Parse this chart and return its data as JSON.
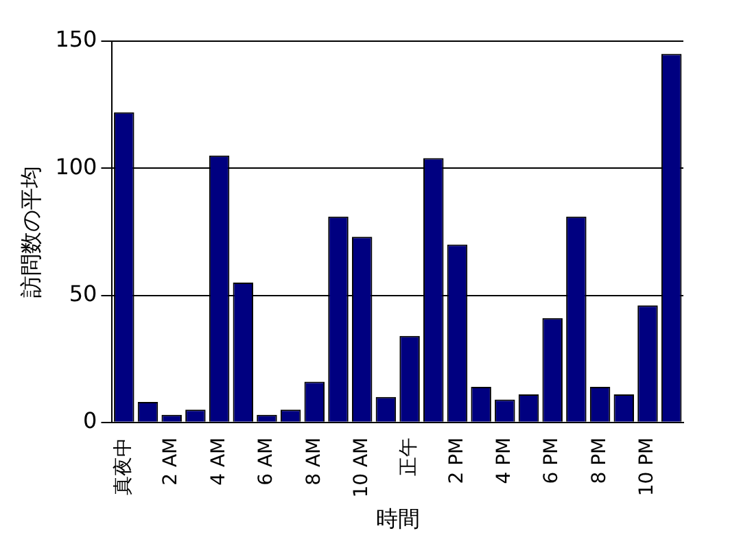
{
  "chart_data": {
    "type": "bar",
    "xlabel": "時間",
    "ylabel": "訪問数の平均",
    "categories": [
      "真夜中",
      null,
      "2 AM",
      null,
      "4 AM",
      null,
      "6 AM",
      null,
      "8 AM",
      null,
      "10 AM",
      null,
      "正午",
      null,
      "2 PM",
      null,
      "4 PM",
      null,
      "6 PM",
      null,
      "8 PM",
      null,
      "10 PM",
      null
    ],
    "values": [
      122,
      8,
      3,
      5,
      105,
      55,
      3,
      5,
      16,
      81,
      73,
      10,
      34,
      104,
      70,
      14,
      9,
      11,
      41,
      81,
      14,
      11,
      46,
      145
    ],
    "color": "#000080",
    "ylim": [
      0,
      150
    ],
    "yticks": [
      0,
      50,
      100,
      150
    ],
    "grid": "y",
    "legend": false
  }
}
